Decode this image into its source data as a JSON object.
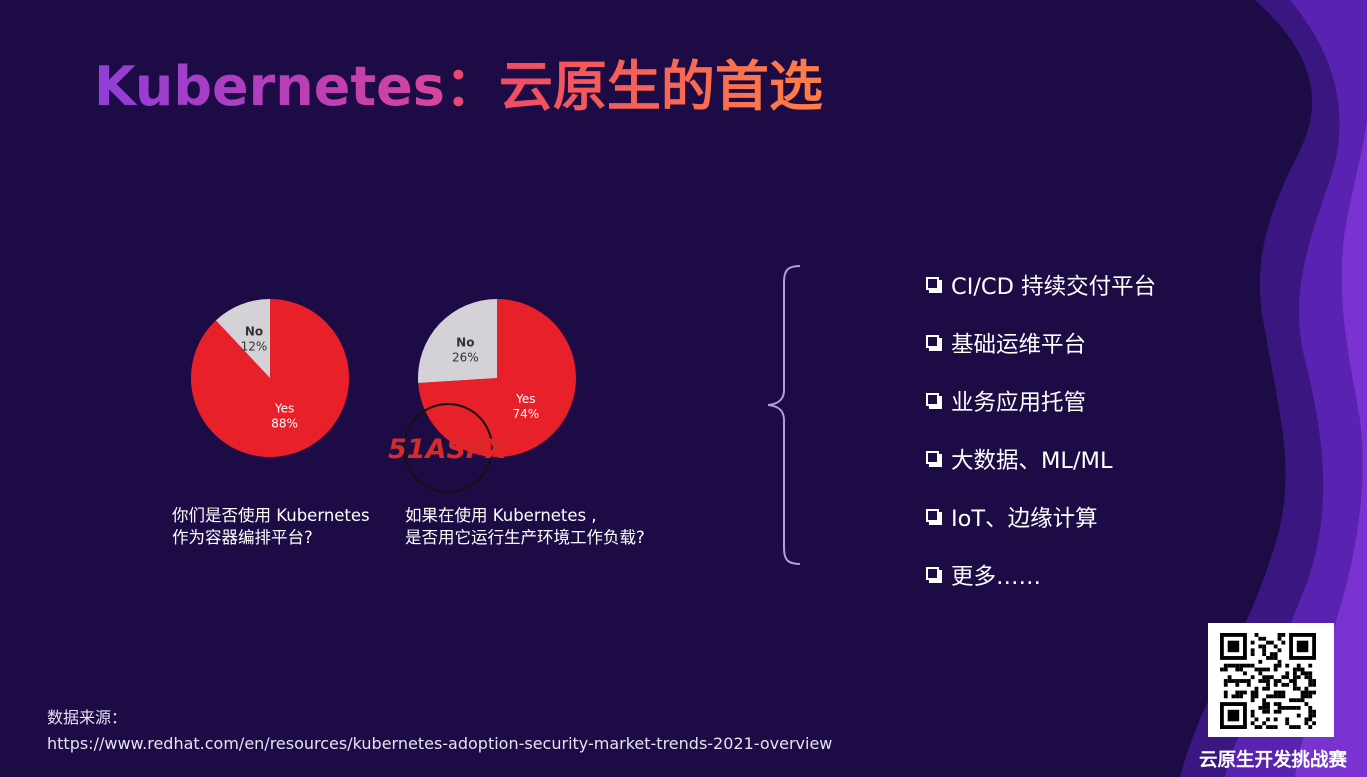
{
  "title": {
    "en": "Kubernetes",
    "sep": "：",
    "zh": "云原生的首选"
  },
  "chart_data": [
    {
      "type": "pie",
      "question": [
        "你们是否使用 Kubernetes",
        "作为容器编排平台?"
      ],
      "slices": [
        {
          "label": "Yes",
          "value": 88,
          "value_text": "88%",
          "color": "#e8202a"
        },
        {
          "label": "No",
          "value": 12,
          "value_text": "12%",
          "color": "#d4d2d6"
        }
      ]
    },
    {
      "type": "pie",
      "question": [
        "如果在使用 Kubernetes ,",
        "是否用它运行生产环境工作负载?"
      ],
      "slices": [
        {
          "label": "Yes",
          "value": 74,
          "value_text": "74%",
          "color": "#e8202a"
        },
        {
          "label": "No",
          "value": 26,
          "value_text": "26%",
          "color": "#d4d2d6"
        }
      ]
    }
  ],
  "watermark": {
    "text": "51ASPX"
  },
  "features": [
    {
      "label": "CI/CD 持续交付平台"
    },
    {
      "label": "基础运维平台"
    },
    {
      "label": "业务应用托管"
    },
    {
      "label": "大数据、ML/ML"
    },
    {
      "label": "IoT、边缘计算"
    },
    {
      "label": "更多……"
    }
  ],
  "source": {
    "label": "数据来源：",
    "url": "https://www.redhat.com/en/resources/kubernetes-adoption-security-market-trends-2021-overview"
  },
  "qr": {
    "label": "云原生开发挑战赛",
    "icon": "qr-code-icon"
  },
  "colors": {
    "background": "#1c0b44",
    "accent": "#8a3fd6",
    "pie_yes": "#e8202a",
    "pie_no": "#d4d2d6"
  }
}
